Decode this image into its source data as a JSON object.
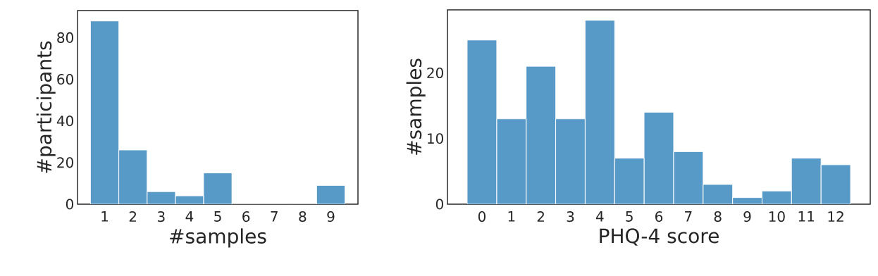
{
  "chart_data": [
    {
      "type": "bar",
      "categories": [
        "1",
        "2",
        "3",
        "4",
        "5",
        "6",
        "7",
        "8",
        "9"
      ],
      "values": [
        88,
        26,
        6,
        4,
        15,
        0,
        0,
        0,
        9
      ],
      "color": "#5799c7",
      "xlabel": "#samples",
      "ylabel": "#participants",
      "ylim": [
        0,
        93
      ],
      "yticks": [
        0,
        20,
        40,
        60,
        80
      ]
    },
    {
      "type": "bar",
      "categories": [
        "0",
        "1",
        "2",
        "3",
        "4",
        "5",
        "6",
        "7",
        "8",
        "9",
        "10",
        "11",
        "12"
      ],
      "values": [
        25,
        13,
        21,
        13,
        28,
        7,
        14,
        8,
        3,
        1,
        2,
        7,
        6
      ],
      "color": "#5799c7",
      "xlabel": "PHQ-4 score",
      "ylabel": "#samples",
      "ylim": [
        0,
        29.6
      ],
      "yticks": [
        0,
        10,
        20
      ]
    }
  ]
}
